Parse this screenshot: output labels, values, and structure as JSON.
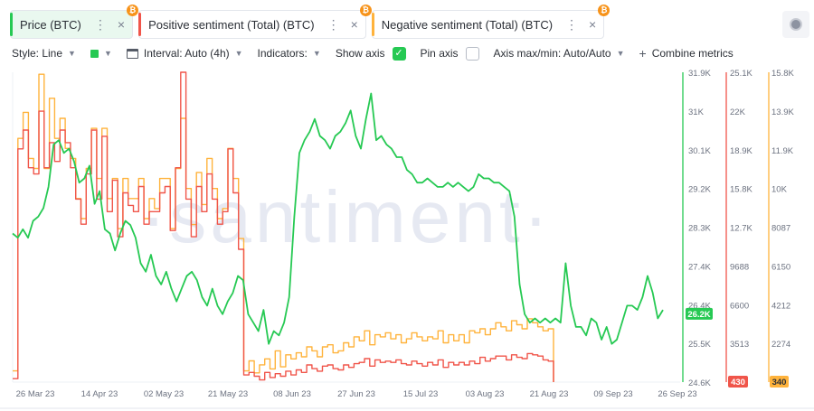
{
  "tabs": [
    {
      "label": "Price (BTC)",
      "color": "#26c953",
      "active": true,
      "dots": "⋮",
      "close": "×",
      "coin": "₿"
    },
    {
      "label": "Positive sentiment (Total) (BTC)",
      "color": "#f0554a",
      "active": false,
      "dots": "⋮",
      "close": "×",
      "coin": "₿"
    },
    {
      "label": "Negative sentiment (Total) (BTC)",
      "color": "#ffb33c",
      "active": false,
      "dots": "⋮",
      "close": "×",
      "coin": "₿"
    }
  ],
  "toolbar": {
    "style_label": "Style: Line",
    "interval_label": "Interval: Auto (4h)",
    "indicators_label": "Indicators:",
    "show_axis_label": "Show axis",
    "show_axis_checked": true,
    "pin_axis_label": "Pin axis",
    "pin_axis_checked": false,
    "axis_minmax_label": "Axis max/min: Auto/Auto",
    "combine_label": "Combine metrics"
  },
  "watermark": "·santiment·",
  "chart_data": {
    "type": "line",
    "x_ticks": [
      "26 Mar 23",
      "14 Apr 23",
      "02 May 23",
      "21 May 23",
      "08 Jun 23",
      "27 Jun 23",
      "15 Jul 23",
      "03 Aug 23",
      "21 Aug 23",
      "09 Sep 23",
      "26 Sep 23"
    ],
    "axes": [
      {
        "name": "Price (BTC)",
        "color": "#26c953",
        "ticks": [
          "31.9K",
          "31K",
          "30.1K",
          "29.2K",
          "28.3K",
          "27.4K",
          "26.4K",
          "25.5K",
          "24.6K"
        ],
        "min": 24600,
        "max": 31900,
        "current_label": "26.2K",
        "current_value": 26200
      },
      {
        "name": "Positive sentiment (Total) (BTC)",
        "color": "#f0554a",
        "ticks": [
          "25.1K",
          "22K",
          "18.9K",
          "15.8K",
          "12.7K",
          "9688",
          "6600",
          "3513"
        ],
        "min": 430,
        "max": 25100,
        "current_label": "430"
      },
      {
        "name": "Negative sentiment (Total) (BTC)",
        "color": "#ffb33c",
        "ticks": [
          "15.8K",
          "13.9K",
          "11.9K",
          "10K",
          "8087",
          "6150",
          "4212",
          "2274"
        ],
        "min": 340,
        "max": 15800,
        "current_label": "340"
      }
    ],
    "series": [
      {
        "name": "Price (BTC)",
        "color": "#26c953",
        "values": [
          28100,
          28000,
          28200,
          28000,
          28400,
          28500,
          28700,
          29200,
          30200,
          30300,
          30000,
          30100,
          29800,
          29300,
          29400,
          29700,
          28800,
          29100,
          28200,
          28100,
          27700,
          28100,
          28400,
          28300,
          28000,
          27400,
          27200,
          27600,
          27100,
          26900,
          27200,
          26800,
          26500,
          26800,
          27100,
          27200,
          27000,
          26600,
          26400,
          26800,
          26400,
          26200,
          26500,
          26700,
          27100,
          27000,
          26200,
          26000,
          25800,
          26300,
          25500,
          25800,
          25700,
          26000,
          26600,
          28500,
          30000,
          30300,
          30500,
          30800,
          30400,
          30300,
          30100,
          30400,
          30500,
          30700,
          31000,
          30400,
          30100,
          30800,
          31400,
          30300,
          30400,
          30200,
          30100,
          29900,
          29900,
          29600,
          29500,
          29300,
          29300,
          29400,
          29300,
          29200,
          29200,
          29300,
          29200,
          29300,
          29200,
          29100,
          29200,
          29500,
          29400,
          29400,
          29300,
          29300,
          29200,
          29100,
          28500,
          26900,
          26200,
          26000,
          26100,
          26000,
          26100,
          26000,
          26100,
          26000,
          27400,
          26400,
          25900,
          25900,
          25700,
          26100,
          26000,
          25600,
          25900,
          25500,
          25600,
          26000,
          26400,
          26400,
          26300,
          26600,
          27100,
          26700,
          26100,
          26300
        ]
      },
      {
        "name": "Positive sentiment (Total) (BTC)",
        "color": "#f0554a",
        "values": [
          700,
          19000,
          20500,
          17500,
          17000,
          22000,
          17500,
          19500,
          18000,
          20500,
          19500,
          17500,
          15000,
          13000,
          17000,
          20500,
          15000,
          20000,
          14000,
          16500,
          12000,
          15500,
          14500,
          14000,
          16000,
          13000,
          14000,
          14000,
          15500,
          16000,
          12500,
          17500,
          25100,
          15000,
          12000,
          16000,
          14000,
          17000,
          15000,
          13000,
          14000,
          19000,
          15500,
          11000,
          1000,
          1200,
          900,
          600,
          1200,
          800,
          1100,
          900,
          1300,
          1000,
          1400,
          1200,
          1800,
          1500,
          1300,
          1700,
          1800,
          1500,
          1400,
          1800,
          1600,
          1900,
          2000,
          2300,
          1700,
          2200,
          2000,
          2100,
          2000,
          2200,
          1900,
          1800,
          2100,
          1900,
          1700,
          2000,
          1800,
          2200,
          1600,
          2000,
          1800,
          2000,
          1800,
          2100,
          1900,
          2400,
          2100,
          2300,
          2500,
          2500,
          2200,
          2600,
          2400,
          2300,
          2700,
          2600,
          2500,
          2200,
          2100,
          430
        ]
      },
      {
        "name": "Negative sentiment (Total) (BTC)",
        "color": "#ffb33c",
        "values": [
          900,
          12500,
          13800,
          11500,
          11000,
          15700,
          11000,
          14500,
          12500,
          13500,
          12000,
          11500,
          9500,
          8500,
          11000,
          13000,
          10500,
          13000,
          9500,
          10500,
          8000,
          10500,
          9500,
          9500,
          10500,
          8500,
          9500,
          9000,
          10500,
          10500,
          8000,
          11000,
          13500,
          10000,
          8200,
          10800,
          9200,
          11500,
          10000,
          8500,
          9000,
          12000,
          10500,
          7500,
          900,
          1400,
          800,
          1200,
          1500,
          1000,
          1900,
          1100,
          1700,
          1500,
          1800,
          1600,
          2100,
          1900,
          1600,
          2100,
          2200,
          1800,
          1900,
          2300,
          2100,
          2600,
          2400,
          2900,
          2200,
          2700,
          2600,
          2800,
          2500,
          2700,
          2300,
          2500,
          2800,
          2600,
          2400,
          2600,
          2500,
          2900,
          2300,
          2700,
          2400,
          2700,
          2300,
          2900,
          2800,
          3000,
          2700,
          3000,
          3300,
          3100,
          2900,
          3400,
          3200,
          3000,
          3500,
          3300,
          3100,
          2900,
          3000,
          340
        ]
      }
    ]
  }
}
